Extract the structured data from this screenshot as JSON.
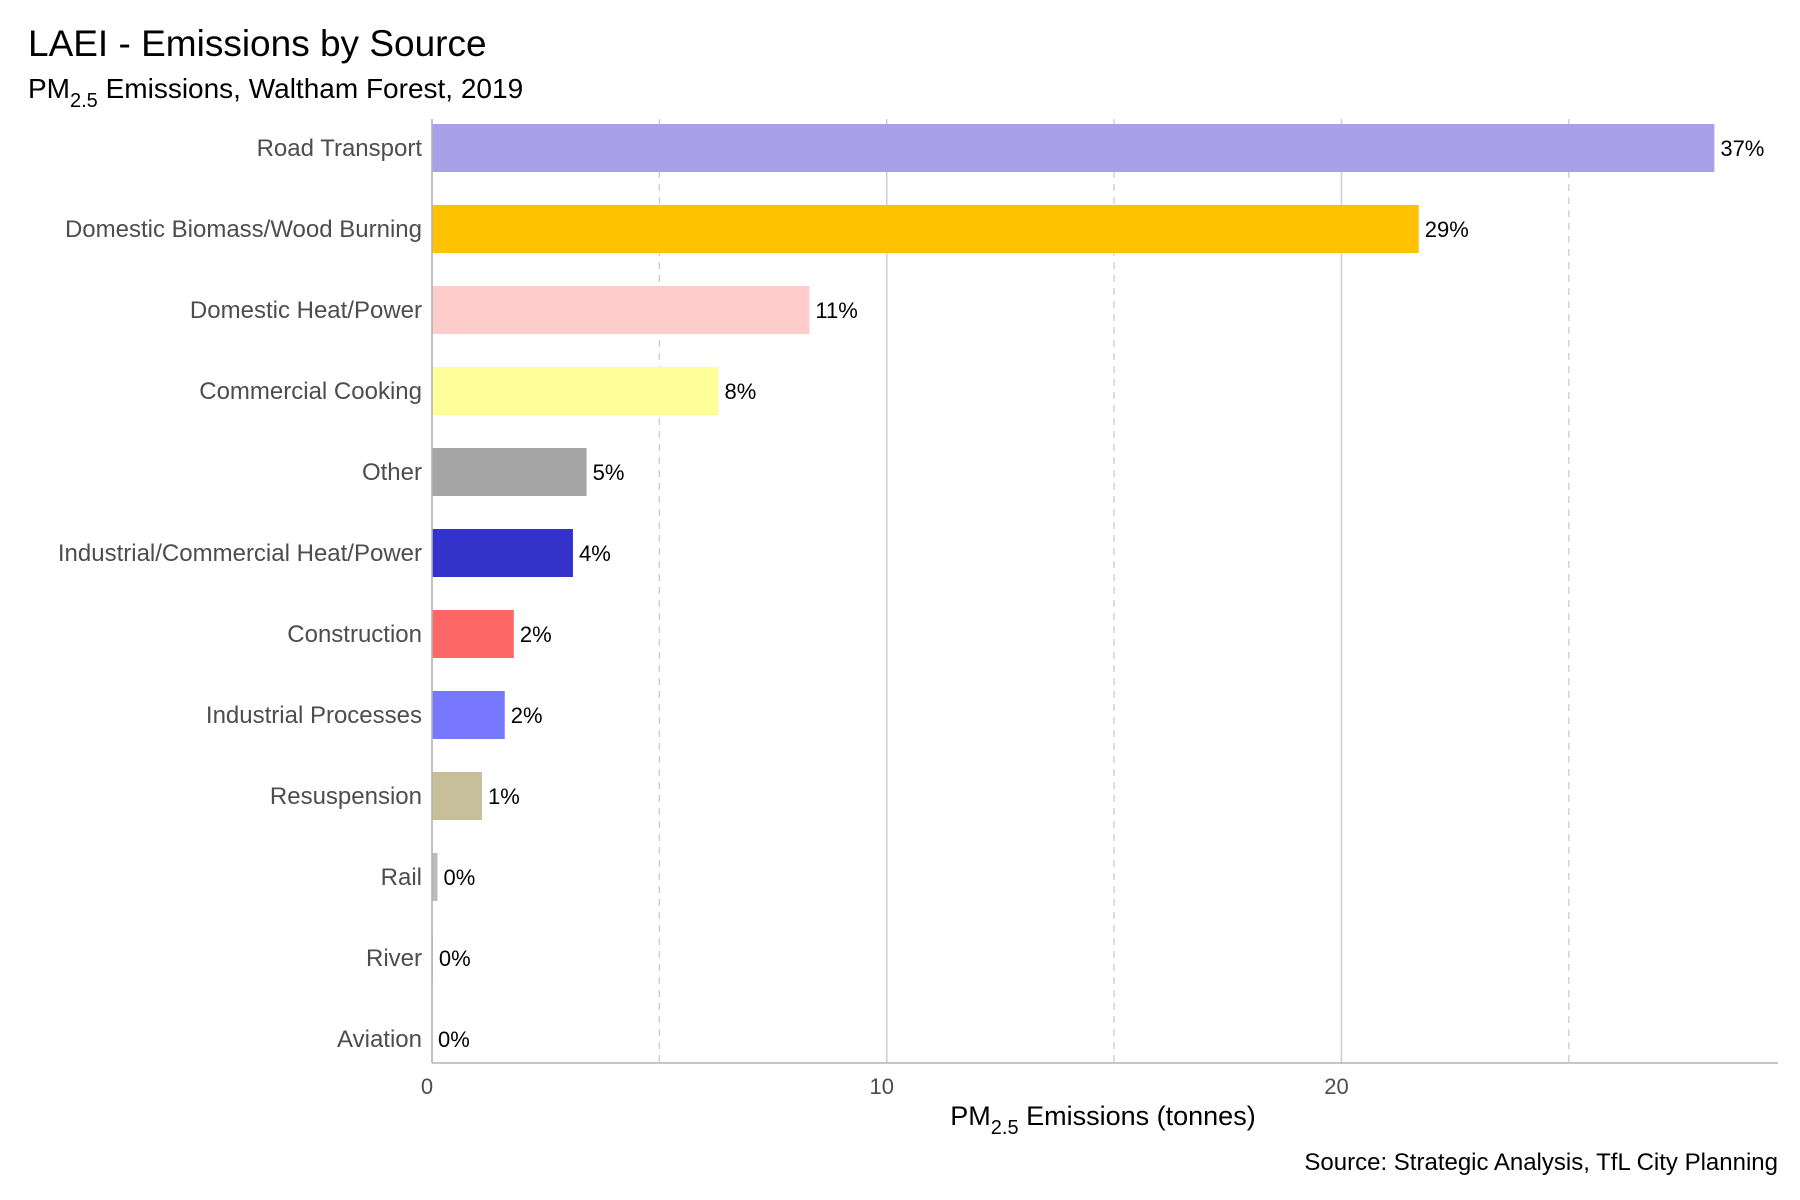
{
  "chart_data": {
    "type": "bar",
    "orientation": "horizontal",
    "title": "LAEI - Emissions by Source",
    "subtitle": {
      "prefix": "PM",
      "subscript": "2.5",
      "suffix": " Emissions, Waltham Forest, 2019"
    },
    "xlabel": {
      "prefix": "PM",
      "subscript": "2.5",
      "suffix": " Emissions (tonnes)"
    },
    "caption": "Source: Strategic Analysis, TfL City Planning",
    "xlim": [
      0,
      29.6
    ],
    "x_major_ticks": [
      0,
      10,
      20
    ],
    "x_minor_gridlines": [
      5,
      15,
      25
    ],
    "grid": true,
    "legend": "none",
    "categories": [
      "Road Transport",
      "Domestic Biomass/Wood Burning",
      "Domestic Heat/Power",
      "Commercial Cooking",
      "Other",
      "Industrial/Commercial Heat/Power",
      "Construction",
      "Industrial Processes",
      "Resuspension",
      "Rail",
      "River",
      "Aviation"
    ],
    "values": [
      28.2,
      21.7,
      8.3,
      6.3,
      3.4,
      3.1,
      1.8,
      1.6,
      1.1,
      0.12,
      0.02,
      0.0
    ],
    "labels": [
      "37%",
      "29%",
      "11%",
      "8%",
      "5%",
      "4%",
      "2%",
      "2%",
      "1%",
      "0%",
      "0%",
      "0%"
    ],
    "colors": [
      "#aa9fe9",
      "#ffc200",
      "#ffcccc",
      "#ffff99",
      "#a6a6a6",
      "#3333cc",
      "#ff6666",
      "#7777ff",
      "#c7bf99",
      "#bbbbbb",
      "#bbbbbb",
      "#bbbbbb"
    ]
  }
}
